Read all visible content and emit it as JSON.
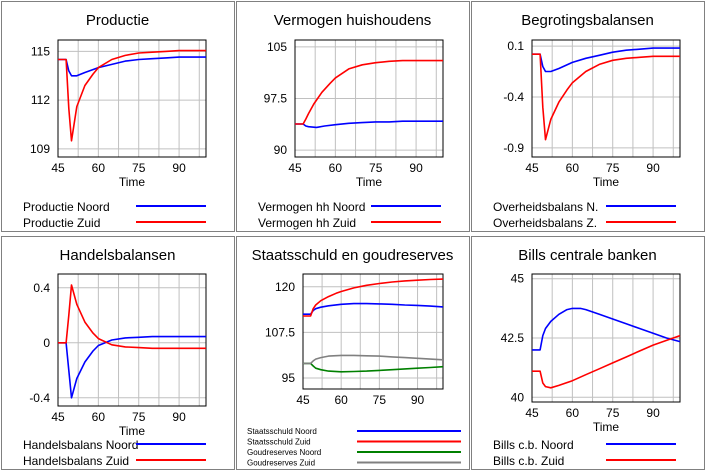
{
  "colors": {
    "north": "#0000ff",
    "south": "#ff0000",
    "gold_north": "#008000",
    "gold_south": "#808080",
    "grid": "#c0c0c0"
  },
  "chart_data": [
    {
      "type": "line",
      "title": "Productie",
      "xlabel": "Time",
      "xlim": [
        45,
        100
      ],
      "xticks": [
        "45",
        "60",
        "75",
        "90"
      ],
      "xtick_values": [
        45,
        60,
        75,
        90
      ],
      "ylim": [
        108.5,
        115.7
      ],
      "yticks": [
        "115",
        "112",
        "109"
      ],
      "ytick_values": [
        115,
        112,
        109
      ],
      "series": [
        {
          "name": "Productie Noord",
          "color": "north",
          "x": [
            45,
            47,
            48,
            49,
            50,
            52,
            55,
            60,
            65,
            70,
            75,
            80,
            85,
            90,
            95,
            100
          ],
          "y": [
            114.5,
            114.5,
            114.5,
            113.8,
            113.5,
            113.5,
            113.7,
            114.0,
            114.2,
            114.4,
            114.5,
            114.55,
            114.6,
            114.65,
            114.65,
            114.65
          ]
        },
        {
          "name": "Productie Zuid",
          "color": "south",
          "x": [
            45,
            47,
            48,
            49,
            50,
            52,
            55,
            58,
            60,
            65,
            70,
            75,
            80,
            85,
            90,
            95,
            100
          ],
          "y": [
            114.5,
            114.5,
            114.5,
            111.5,
            109.5,
            111.6,
            112.9,
            113.6,
            114.0,
            114.5,
            114.75,
            114.9,
            114.95,
            115.0,
            115.05,
            115.05,
            115.05
          ]
        }
      ]
    },
    {
      "type": "line",
      "title": "Vermogen huishoudens",
      "xlabel": "Time",
      "xlim": [
        45,
        100
      ],
      "xticks": [
        "45",
        "60",
        "75",
        "90"
      ],
      "xtick_values": [
        45,
        60,
        75,
        90
      ],
      "ylim": [
        89,
        106
      ],
      "yticks": [
        "105",
        "97.5",
        "90"
      ],
      "ytick_values": [
        105,
        97.5,
        90
      ],
      "series": [
        {
          "name": "Vermogen hh Noord",
          "color": "north",
          "x": [
            45,
            47,
            48,
            49,
            50,
            53,
            56,
            60,
            65,
            70,
            75,
            80,
            85,
            90,
            95,
            100
          ],
          "y": [
            93.8,
            93.8,
            93.8,
            93.5,
            93.4,
            93.3,
            93.5,
            93.7,
            93.9,
            94.0,
            94.1,
            94.1,
            94.2,
            94.2,
            94.2,
            94.2
          ]
        },
        {
          "name": "Vermogen hh Zuid",
          "color": "south",
          "x": [
            45,
            47,
            48,
            49,
            50,
            52,
            55,
            58,
            60,
            65,
            70,
            75,
            80,
            85,
            90,
            95,
            100
          ],
          "y": [
            93.8,
            93.8,
            93.8,
            94.5,
            95.3,
            96.7,
            98.4,
            99.7,
            100.5,
            101.8,
            102.4,
            102.7,
            102.9,
            103.0,
            103.0,
            103.0,
            103.0
          ]
        }
      ]
    },
    {
      "type": "line",
      "title": "Begrotingsbalansen",
      "xlabel": "Time",
      "xlim": [
        45,
        100
      ],
      "xticks": [
        "45",
        "60",
        "75",
        "90"
      ],
      "xtick_values": [
        45,
        60,
        75,
        90
      ],
      "ylim": [
        -0.99,
        0.16
      ],
      "yticks": [
        "0.1",
        "-0.4",
        "-0.9"
      ],
      "ytick_values": [
        0.1,
        -0.4,
        -0.9
      ],
      "series": [
        {
          "name": "Overheidsbalans N.",
          "color": "north",
          "x": [
            45,
            47,
            48,
            49,
            50,
            52,
            55,
            60,
            65,
            70,
            75,
            80,
            85,
            90,
            95,
            100
          ],
          "y": [
            0.02,
            0.02,
            0.02,
            -0.1,
            -0.15,
            -0.15,
            -0.12,
            -0.06,
            -0.02,
            0.01,
            0.04,
            0.06,
            0.07,
            0.08,
            0.08,
            0.08
          ]
        },
        {
          "name": "Overheidsbalans Z.",
          "color": "south",
          "x": [
            45,
            47,
            48,
            49,
            50,
            52,
            55,
            58,
            60,
            65,
            70,
            75,
            80,
            85,
            90,
            95,
            100
          ],
          "y": [
            0.02,
            0.02,
            0.02,
            -0.5,
            -0.82,
            -0.62,
            -0.45,
            -0.33,
            -0.26,
            -0.15,
            -0.08,
            -0.04,
            -0.02,
            -0.01,
            0.0,
            0.0,
            0.0
          ]
        }
      ]
    },
    {
      "type": "line",
      "title": "Handelsbalansen",
      "xlabel": "Time",
      "xlim": [
        45,
        100
      ],
      "xticks": [
        "45",
        "60",
        "75",
        "90"
      ],
      "xtick_values": [
        45,
        60,
        75,
        90
      ],
      "ylim": [
        -0.46,
        0.5
      ],
      "yticks": [
        "0.4",
        "0",
        "-0.4"
      ],
      "ytick_values": [
        0.4,
        0,
        -0.4
      ],
      "series": [
        {
          "name": "Handelsbalans Noord",
          "color": "north",
          "x": [
            45,
            47,
            48,
            49,
            50,
            52,
            55,
            58,
            60,
            65,
            70,
            75,
            80,
            85,
            90,
            95,
            100
          ],
          "y": [
            0.0,
            0.0,
            0.0,
            -0.2,
            -0.4,
            -0.26,
            -0.14,
            -0.06,
            -0.02,
            0.02,
            0.035,
            0.04,
            0.045,
            0.045,
            0.045,
            0.045,
            0.045
          ]
        },
        {
          "name": "Handelsbalans Zuid",
          "color": "south",
          "x": [
            45,
            47,
            48,
            49,
            50,
            52,
            55,
            58,
            60,
            65,
            70,
            75,
            80,
            85,
            90,
            95,
            100
          ],
          "y": [
            0.0,
            0.0,
            0.0,
            0.2,
            0.42,
            0.28,
            0.15,
            0.07,
            0.03,
            -0.015,
            -0.03,
            -0.035,
            -0.04,
            -0.04,
            -0.04,
            -0.04,
            -0.04
          ]
        }
      ]
    },
    {
      "type": "line",
      "title": "Staatsschuld en goudreserves",
      "xlabel": "",
      "xlim": [
        45,
        100
      ],
      "xticks": [
        "45",
        "60",
        "75",
        "90"
      ],
      "xtick_values": [
        45,
        60,
        75,
        90
      ],
      "ylim": [
        92,
        123.5
      ],
      "yticks": [
        "120",
        "107.5",
        "95"
      ],
      "ytick_values": [
        120,
        107.5,
        95
      ],
      "series": [
        {
          "name": "Staatsschuld Noord",
          "color": "north",
          "x": [
            45,
            47,
            48,
            49,
            50,
            52,
            55,
            60,
            65,
            70,
            75,
            80,
            85,
            90,
            95,
            100
          ],
          "y": [
            112.5,
            112.5,
            112.5,
            113.5,
            114.0,
            114.4,
            114.8,
            115.2,
            115.4,
            115.4,
            115.3,
            115.2,
            115.0,
            114.9,
            114.7,
            114.5
          ]
        },
        {
          "name": "Staatsschuld Zuid",
          "color": "south",
          "x": [
            45,
            47,
            48,
            49,
            50,
            52,
            55,
            58,
            60,
            65,
            70,
            75,
            80,
            85,
            90,
            95,
            100
          ],
          "y": [
            112.0,
            112.0,
            112.0,
            114.0,
            115.0,
            116.2,
            117.3,
            118.2,
            118.7,
            119.7,
            120.4,
            120.9,
            121.3,
            121.6,
            121.8,
            122.0,
            122.1
          ]
        },
        {
          "name": "Goudreserves Noord",
          "color": "gold_north",
          "x": [
            45,
            47,
            48,
            49,
            50,
            52,
            55,
            60,
            65,
            70,
            75,
            80,
            85,
            90,
            95,
            100
          ],
          "y": [
            99.0,
            99.0,
            99.0,
            98.3,
            97.7,
            97.3,
            96.9,
            96.7,
            96.8,
            96.9,
            97.1,
            97.3,
            97.5,
            97.7,
            97.9,
            98.1
          ]
        },
        {
          "name": "Goudreserves Zuid",
          "color": "gold_south",
          "x": [
            45,
            47,
            48,
            49,
            50,
            52,
            55,
            60,
            65,
            70,
            75,
            80,
            85,
            90,
            95,
            100
          ],
          "y": [
            99.0,
            99.0,
            99.0,
            99.7,
            100.2,
            100.6,
            101.0,
            101.2,
            101.2,
            101.1,
            101.0,
            100.8,
            100.6,
            100.4,
            100.2,
            100.0
          ]
        }
      ]
    },
    {
      "type": "line",
      "title": "Bills centrale banken",
      "xlabel": "Time",
      "xlim": [
        45,
        100
      ],
      "xticks": [
        "45",
        "60",
        "75",
        "90"
      ],
      "xtick_values": [
        45,
        60,
        75,
        90
      ],
      "ylim": [
        39.8,
        45.2
      ],
      "yticks": [
        "45",
        "42.5",
        "40"
      ],
      "ytick_values": [
        45,
        42.5,
        40
      ],
      "series": [
        {
          "name": "Bills c.b. Noord",
          "color": "north",
          "x": [
            45,
            47,
            48,
            49,
            50,
            52,
            55,
            58,
            60,
            63,
            65,
            70,
            75,
            80,
            85,
            90,
            95,
            100
          ],
          "y": [
            42.0,
            42.0,
            42.0,
            42.6,
            42.9,
            43.2,
            43.5,
            43.7,
            43.75,
            43.75,
            43.7,
            43.5,
            43.3,
            43.1,
            42.9,
            42.7,
            42.5,
            42.35
          ]
        },
        {
          "name": "Bills c.b. Zuid",
          "color": "south",
          "x": [
            45,
            47,
            48,
            49,
            50,
            52,
            55,
            60,
            65,
            70,
            75,
            80,
            85,
            90,
            95,
            100
          ],
          "y": [
            41.1,
            41.1,
            41.1,
            40.6,
            40.45,
            40.4,
            40.5,
            40.7,
            40.95,
            41.2,
            41.45,
            41.7,
            41.95,
            42.2,
            42.4,
            42.6
          ]
        }
      ]
    }
  ]
}
